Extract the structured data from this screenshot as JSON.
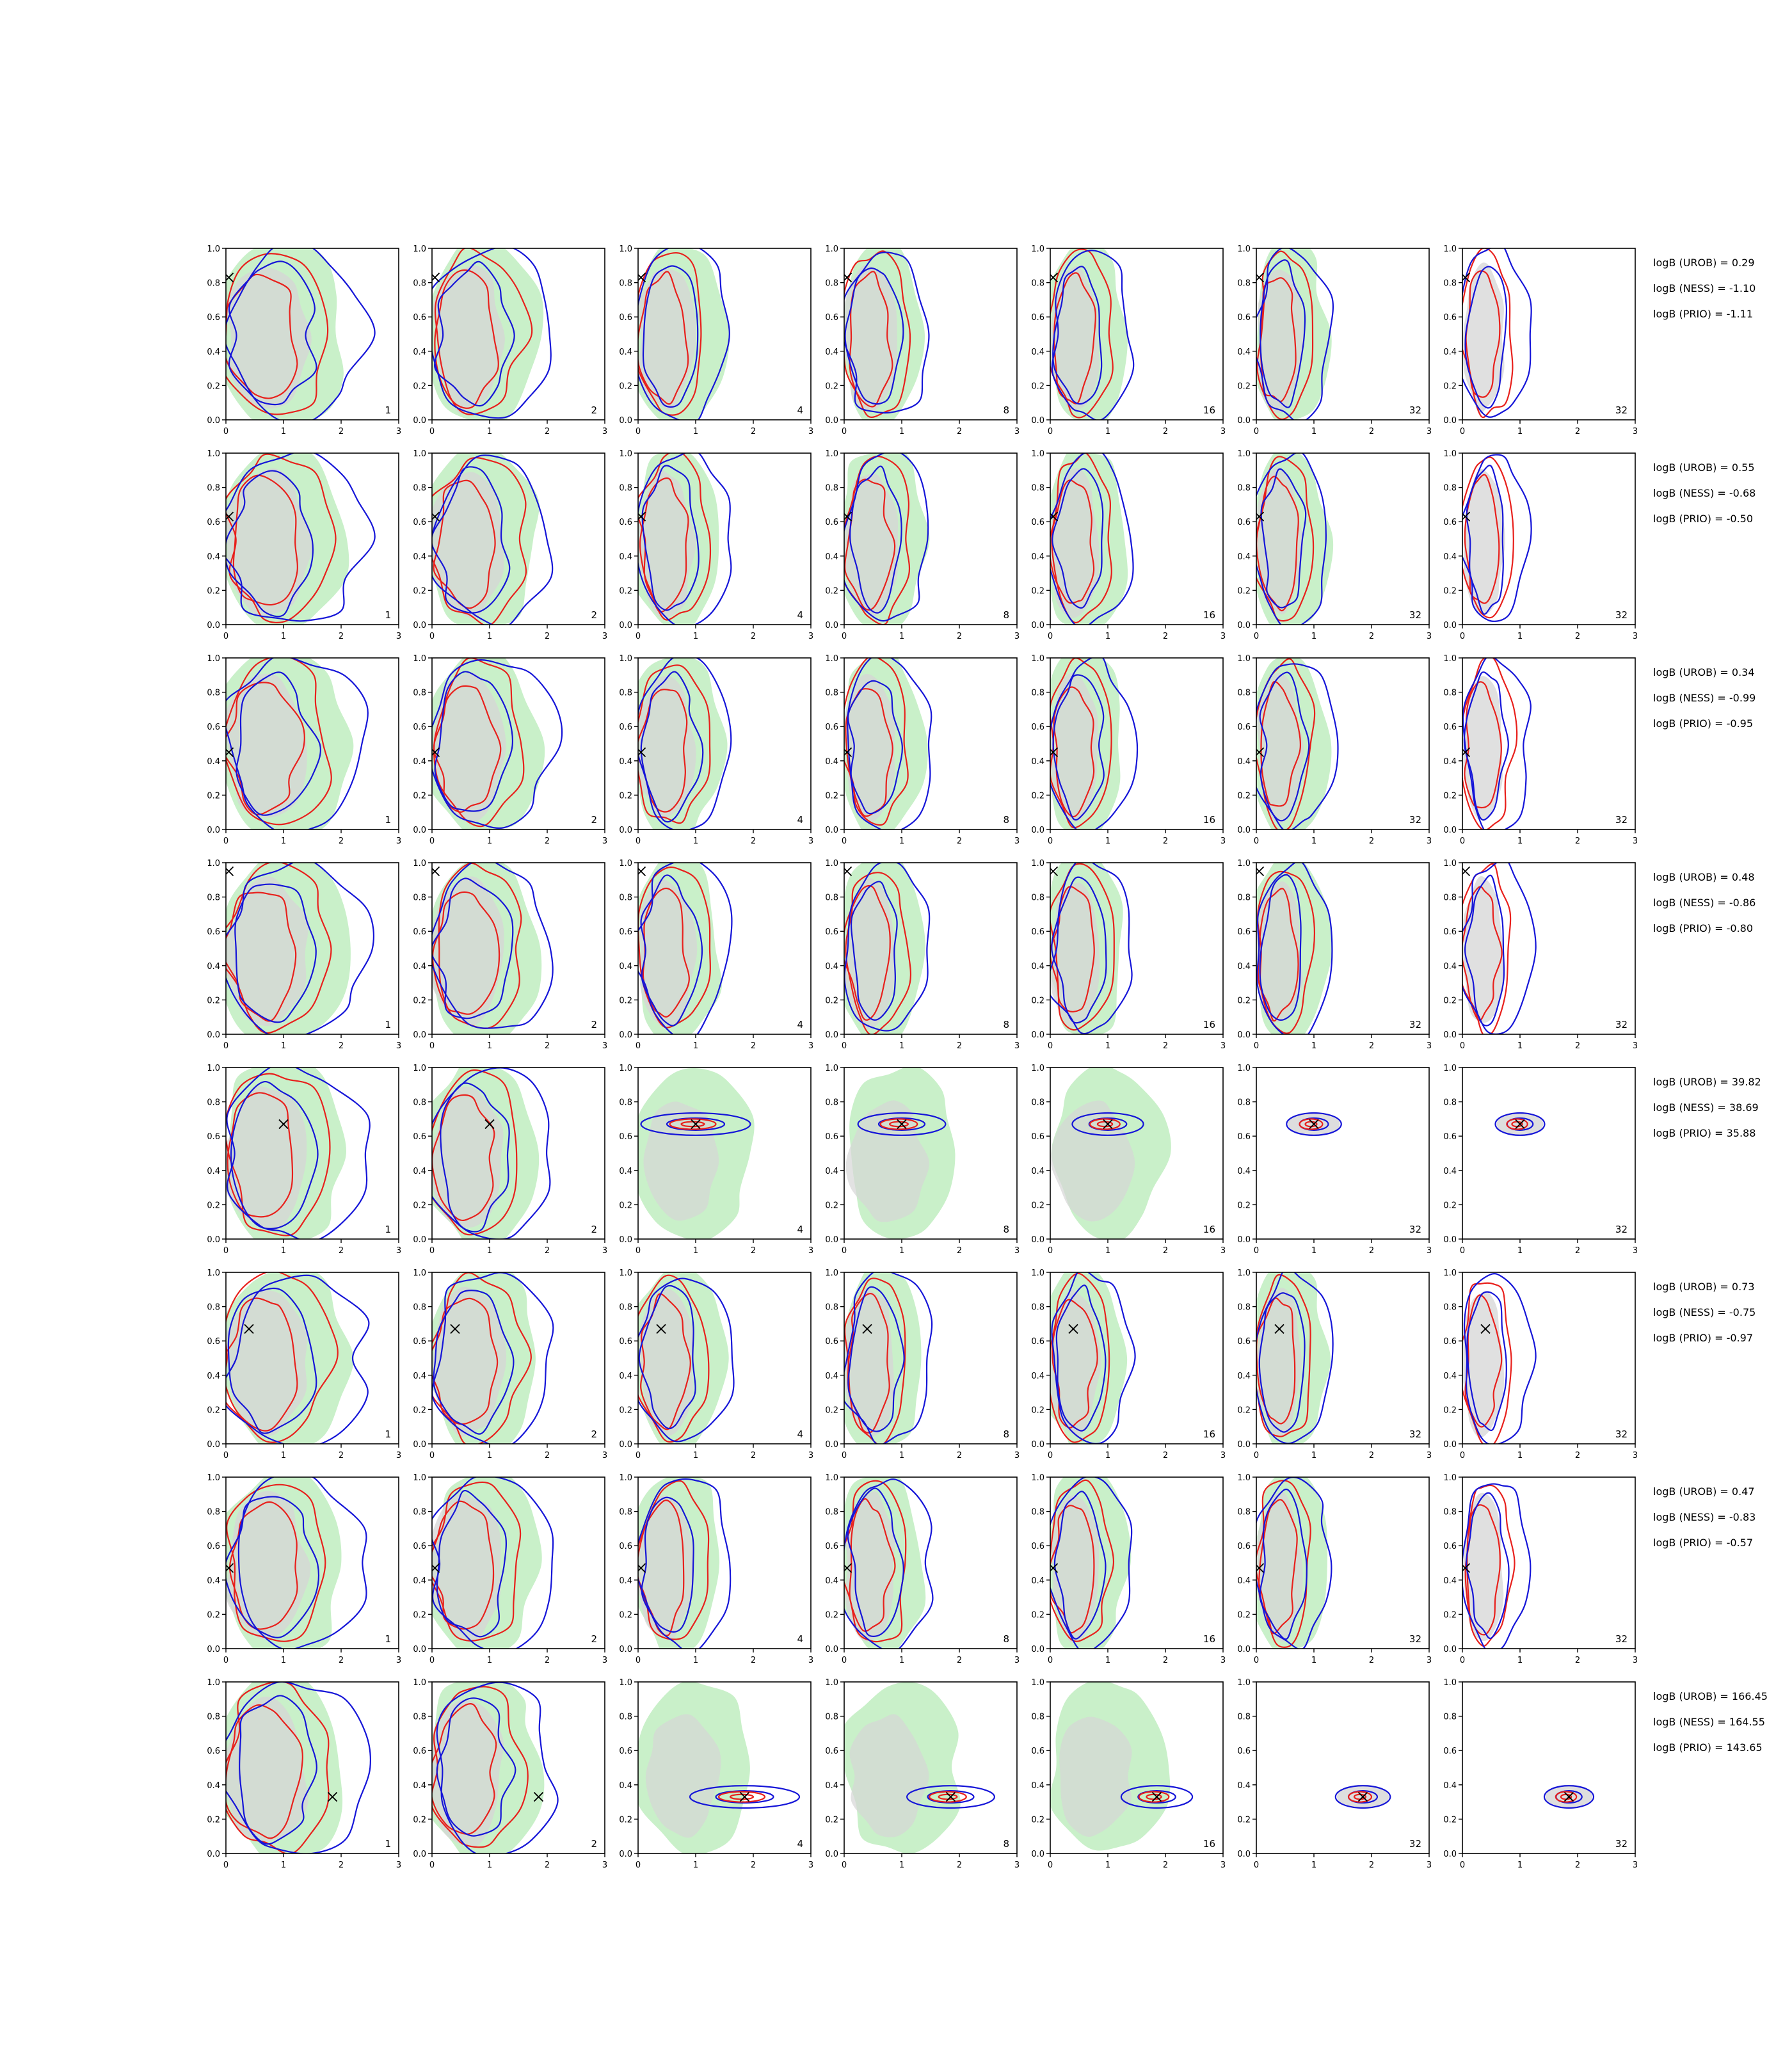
{
  "chart_data": {
    "type": "contour-grid",
    "rows": 8,
    "cols": 7,
    "panel_labels": [
      "1",
      "2",
      "4",
      "8",
      "16",
      "32",
      "32"
    ],
    "xlim": [
      0,
      3
    ],
    "ylim": [
      0,
      1.0
    ],
    "x_ticks": [
      "0",
      "1",
      "2",
      "3"
    ],
    "y_ticks": [
      "0.0",
      "0.2",
      "0.4",
      "0.6",
      "0.8",
      "1.0"
    ],
    "colors": {
      "green_fill": "#c9f0c9",
      "grey_fill": "#d6d6d6",
      "red": "#e8201c",
      "blue": "#1515d8",
      "marker": "#000000"
    },
    "truth": [
      {
        "x": 0.05,
        "y": 0.83
      },
      {
        "x": 0.05,
        "y": 0.63
      },
      {
        "x": 0.05,
        "y": 0.45
      },
      {
        "x": 0.05,
        "y": 0.95
      },
      {
        "x": 1.0,
        "y": 0.67
      },
      {
        "x": 0.4,
        "y": 0.67
      },
      {
        "x": 0.05,
        "y": 0.47
      },
      {
        "x": 1.85,
        "y": 0.33
      }
    ],
    "log_bayes": [
      [
        "logB (UROB) = 0.29",
        "logB (NESS) = -1.10",
        "logB (PRIO) = -1.11"
      ],
      [
        "logB (UROB) = 0.55",
        "logB (NESS) = -0.68",
        "logB (PRIO) = -0.50"
      ],
      [
        "logB (UROB) = 0.34",
        "logB (NESS) = -0.99",
        "logB (PRIO) = -0.95"
      ],
      [
        "logB (UROB) = 0.48",
        "logB (NESS) = -0.86",
        "logB (PRIO) = -0.80"
      ],
      [
        "logB (UROB) = 39.82",
        "logB (NESS) = 38.69",
        "logB (PRIO) = 35.88"
      ],
      [
        "logB (UROB) = 0.73",
        "logB (NESS) = -0.75",
        "logB (PRIO) = -0.97"
      ],
      [
        "logB (UROB) = 0.47",
        "logB (NESS) = -0.83",
        "logB (PRIO) = -0.57"
      ],
      [
        "logB (UROB) = 166.45",
        "logB (NESS) = 164.55",
        "logB (PRIO) = 143.65"
      ]
    ]
  }
}
